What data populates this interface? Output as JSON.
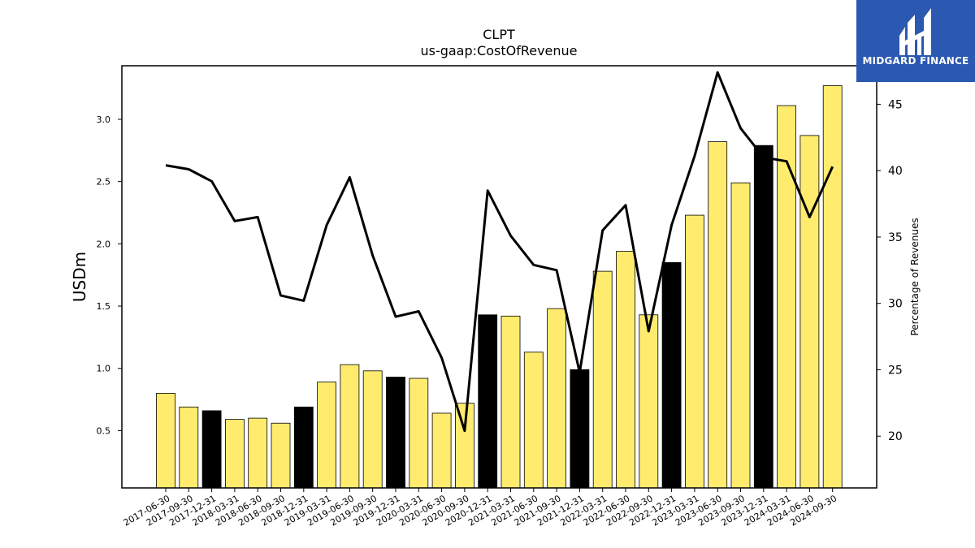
{
  "logo": {
    "text": "MIDGARD FINANCE"
  },
  "chart_data": {
    "type": "bar",
    "title": "CLPT",
    "subtitle": "us-gaap:CostOfRevenue",
    "ylabel": "USDm",
    "y2label": "Percentage of Revenues",
    "ylim": [
      0.04,
      3.43
    ],
    "y2lim": [
      16.1,
      47.9
    ],
    "yticks": [
      0.5,
      1.0,
      1.5,
      2.0,
      2.5,
      3.0
    ],
    "y2ticks": [
      20,
      25,
      30,
      35,
      40,
      45
    ],
    "categories": [
      "2017-06-30",
      "2017-09-30",
      "2017-12-31",
      "2018-03-31",
      "2018-06-30",
      "2018-09-30",
      "2018-12-31",
      "2019-03-31",
      "2019-06-30",
      "2019-09-30",
      "2019-12-31",
      "2020-03-31",
      "2020-06-30",
      "2020-09-30",
      "2020-12-31",
      "2021-03-31",
      "2021-06-30",
      "2021-09-30",
      "2021-12-31",
      "2022-03-31",
      "2022-06-30",
      "2022-09-30",
      "2022-12-31",
      "2023-03-31",
      "2023-06-30",
      "2023-09-30",
      "2023-12-31",
      "2024-03-31",
      "2024-06-30",
      "2024-09-30"
    ],
    "series": [
      {
        "kind": "bar",
        "values": [
          0.8,
          0.69,
          0.66,
          0.59,
          0.6,
          0.56,
          0.69,
          0.89,
          1.03,
          0.98,
          0.93,
          0.92,
          0.64,
          0.72,
          1.43,
          1.42,
          1.13,
          1.48,
          0.99,
          1.78,
          1.94,
          1.43,
          1.85,
          2.23,
          2.82,
          2.49,
          2.79,
          3.11,
          2.87,
          3.27
        ],
        "highlight": [
          false,
          false,
          true,
          false,
          false,
          false,
          true,
          false,
          false,
          false,
          true,
          false,
          false,
          false,
          true,
          false,
          false,
          false,
          true,
          false,
          false,
          false,
          true,
          false,
          false,
          false,
          true,
          false,
          false,
          false
        ],
        "color": "#ffec6e",
        "highlight_color": "#000000"
      },
      {
        "kind": "line",
        "axis": "right",
        "values": [
          40.4,
          40.1,
          39.2,
          36.2,
          36.5,
          30.6,
          30.2,
          35.9,
          39.5,
          33.6,
          29.0,
          29.4,
          25.9,
          20.4,
          38.5,
          35.1,
          32.9,
          32.5,
          24.8,
          35.5,
          37.4,
          27.9,
          35.9,
          41.1,
          47.4,
          43.2,
          41.0,
          40.7,
          36.5,
          40.3
        ],
        "color": "#000000"
      }
    ],
    "grid": false
  }
}
